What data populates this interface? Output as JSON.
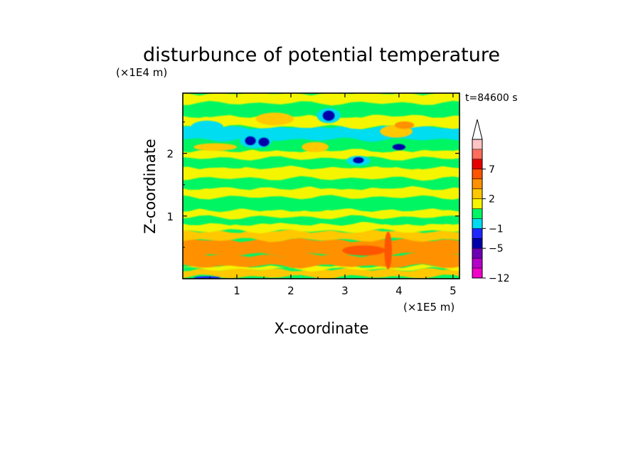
{
  "chart_data": {
    "type": "heatmap",
    "title": "disturbunce of potential temperature",
    "xlabel": "X-coordinate",
    "ylabel": "Z-coordinate",
    "x_unit_label": "(×1E5 m)",
    "y_unit_label": "(×1E4 m)",
    "time_label": "t=84600 s",
    "xlim": [
      0,
      5.12
    ],
    "ylim": [
      0,
      2.96
    ],
    "x_ticks": [
      1,
      2,
      3,
      4,
      5
    ],
    "x_tick_labels": [
      "1",
      "2",
      "3",
      "4",
      "5"
    ],
    "y_ticks": [
      1,
      2
    ],
    "y_tick_labels": [
      "1",
      "2"
    ],
    "colorbar": {
      "levels": [
        -12,
        -9,
        -7,
        -5,
        -3,
        -1,
        0,
        1,
        2,
        4,
        5,
        7,
        9,
        11
      ],
      "tick_labels": [
        {
          "level": 7,
          "label": "7"
        },
        {
          "level": 2,
          "label": "2"
        },
        {
          "level": -1,
          "label": "−1"
        },
        {
          "level": -5,
          "label": "−5"
        },
        {
          "level": -12,
          "label": "−12"
        }
      ],
      "colors": [
        "#f000c8",
        "#b400c8",
        "#6e00b4",
        "#0000aa",
        "#1e28ff",
        "#00dcf0",
        "#00f564",
        "#f5f500",
        "#ffc800",
        "#ff9100",
        "#ff5500",
        "#e60000",
        "#ff6e5a",
        "#ffc3c3"
      ],
      "extend": "max"
    },
    "bands": [
      {
        "z0": 0.0,
        "z1": 0.03,
        "level": 0
      },
      {
        "z0": 0.03,
        "z1": 0.15,
        "level": 2
      },
      {
        "z0": 0.15,
        "z1": 0.2,
        "level": 1
      },
      {
        "z0": 0.2,
        "z1": 0.38,
        "level": 4
      },
      {
        "z0": 0.38,
        "z1": 0.62,
        "level": 4
      },
      {
        "z0": 0.62,
        "z1": 0.76,
        "level": 2
      },
      {
        "z0": 0.76,
        "z1": 0.88,
        "level": 1
      },
      {
        "z0": 0.88,
        "z1": 0.98,
        "level": 0
      },
      {
        "z0": 0.98,
        "z1": 1.1,
        "level": 1
      },
      {
        "z0": 1.1,
        "z1": 1.3,
        "level": 0
      },
      {
        "z0": 1.3,
        "z1": 1.45,
        "level": 1
      },
      {
        "z0": 1.45,
        "z1": 1.6,
        "level": 0
      },
      {
        "z0": 1.6,
        "z1": 1.78,
        "level": 1
      },
      {
        "z0": 1.78,
        "z1": 1.92,
        "level": 0
      },
      {
        "z0": 1.92,
        "z1": 2.05,
        "level": 1
      },
      {
        "z0": 2.05,
        "z1": 2.22,
        "level": 0
      },
      {
        "z0": 2.22,
        "z1": 2.42,
        "level": -1
      },
      {
        "z0": 2.42,
        "z1": 2.6,
        "level": 1
      },
      {
        "z0": 2.6,
        "z1": 2.8,
        "level": 0
      },
      {
        "z0": 2.8,
        "z1": 2.96,
        "level": 1
      }
    ],
    "blobs": [
      {
        "x": 1.35,
        "z": 2.2,
        "rx": 0.3,
        "rz": 0.12,
        "level": -1
      },
      {
        "x": 1.25,
        "z": 2.2,
        "rx": 0.1,
        "rz": 0.07,
        "level": -5
      },
      {
        "x": 1.5,
        "z": 2.18,
        "rx": 0.1,
        "rz": 0.07,
        "level": -5
      },
      {
        "x": 2.7,
        "z": 2.6,
        "rx": 0.22,
        "rz": 0.12,
        "level": -1
      },
      {
        "x": 2.7,
        "z": 2.6,
        "rx": 0.11,
        "rz": 0.08,
        "level": -5
      },
      {
        "x": 3.25,
        "z": 1.88,
        "rx": 0.22,
        "rz": 0.08,
        "level": -1
      },
      {
        "x": 3.25,
        "z": 1.89,
        "rx": 0.1,
        "rz": 0.05,
        "level": -5
      },
      {
        "x": 4.0,
        "z": 2.1,
        "rx": 0.12,
        "rz": 0.05,
        "level": -5
      },
      {
        "x": 3.95,
        "z": 2.35,
        "rx": 0.3,
        "rz": 0.1,
        "level": 2
      },
      {
        "x": 4.1,
        "z": 2.45,
        "rx": 0.18,
        "rz": 0.06,
        "level": 4
      },
      {
        "x": 1.7,
        "z": 2.55,
        "rx": 0.35,
        "rz": 0.1,
        "level": 2
      },
      {
        "x": 2.45,
        "z": 2.1,
        "rx": 0.25,
        "rz": 0.08,
        "level": 2
      },
      {
        "x": 0.6,
        "z": 2.1,
        "rx": 0.4,
        "rz": 0.06,
        "level": 2
      },
      {
        "x": 0.45,
        "z": 2.42,
        "rx": 0.3,
        "rz": 0.1,
        "level": -1
      },
      {
        "x": 0.45,
        "z": 0.01,
        "rx": 0.25,
        "rz": 0.03,
        "level": -3
      },
      {
        "x": 3.8,
        "z": 0.45,
        "rx": 0.07,
        "rz": 0.3,
        "level": 5
      },
      {
        "x": 3.35,
        "z": 0.45,
        "rx": 0.4,
        "rz": 0.08,
        "level": 5
      }
    ]
  }
}
